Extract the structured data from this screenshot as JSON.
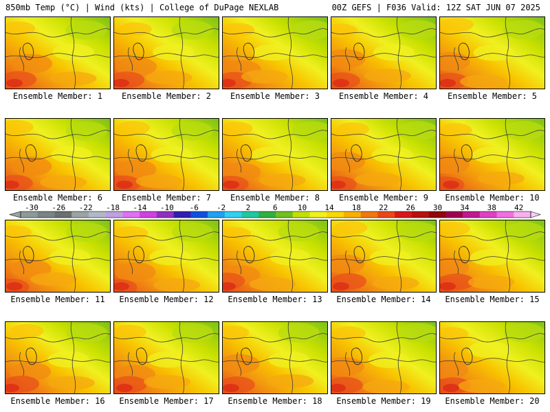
{
  "header": {
    "left_title": "850mb Temp (°C) | Wind (kts) | College of DuPage NEXLAB",
    "right_title": "00Z GEFS | F036 Valid: 12Z SAT JUN 07 2025"
  },
  "colorbar": {
    "tick_labels": [
      "-30",
      "-26",
      "-22",
      "-18",
      "-14",
      "-10",
      "-6",
      "-2",
      "2",
      "6",
      "10",
      "14",
      "18",
      "22",
      "26",
      "30",
      "34",
      "38",
      "42"
    ],
    "colors": [
      "#8c9a9a",
      "#7a8484",
      "#6a7070",
      "#9aa4a4",
      "#b0b8c8",
      "#c0a0e0",
      "#e070f0",
      "#d040e0",
      "#9030c0",
      "#3020b0",
      "#1050e0",
      "#20a0f0",
      "#30d0f0",
      "#20c8a0",
      "#30b040",
      "#70c020",
      "#c0e000",
      "#f0f020",
      "#f8d800",
      "#f8b000",
      "#f07810",
      "#e84818",
      "#d81818",
      "#b80f10",
      "#900808",
      "#a00050",
      "#c01890",
      "#e040c0",
      "#f070e0",
      "#f8b0f0"
    ]
  },
  "panels": [
    {
      "caption": "Ensemble Member: 1"
    },
    {
      "caption": "Ensemble Member: 2"
    },
    {
      "caption": "Ensemble Member: 3"
    },
    {
      "caption": "Ensemble Member: 4"
    },
    {
      "caption": "Ensemble Member: 5"
    },
    {
      "caption": "Ensemble Member: 6"
    },
    {
      "caption": "Ensemble Member: 7"
    },
    {
      "caption": "Ensemble Member: 8"
    },
    {
      "caption": "Ensemble Member: 9"
    },
    {
      "caption": "Ensemble Member: 10"
    },
    {
      "caption": "Ensemble Member: 11"
    },
    {
      "caption": "Ensemble Member: 12"
    },
    {
      "caption": "Ensemble Member: 13"
    },
    {
      "caption": "Ensemble Member: 14"
    },
    {
      "caption": "Ensemble Member: 15"
    },
    {
      "caption": "Ensemble Member: 16"
    },
    {
      "caption": "Ensemble Member: 17"
    },
    {
      "caption": "Ensemble Member: 18"
    },
    {
      "caption": "Ensemble Member: 19"
    },
    {
      "caption": "Ensemble Member: 20"
    }
  ]
}
